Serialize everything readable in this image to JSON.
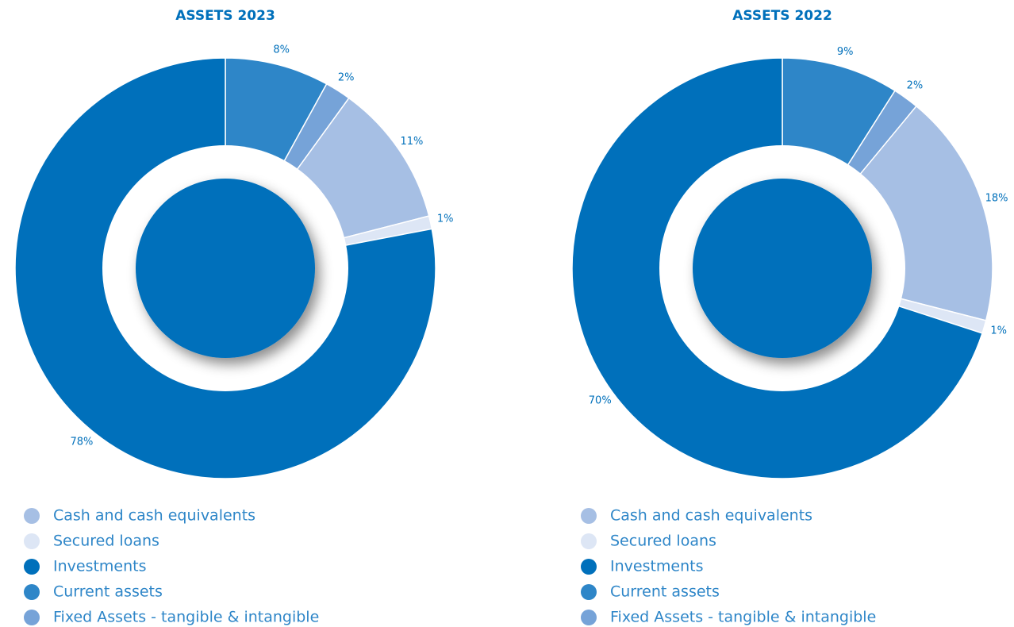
{
  "chart_data": [
    {
      "type": "donut",
      "title": "ASSETS 2023",
      "categories": [
        "Cash and cash equivalents",
        "Secured loans",
        "Investments",
        "Current assets",
        "Fixed Assets - tangible & intangible"
      ],
      "values": [
        11,
        1,
        78,
        8,
        2
      ],
      "value_labels": [
        "11%",
        "1%",
        "78%",
        "8%",
        "2%"
      ],
      "colors": [
        "#a6bfe4",
        "#dde6f5",
        "#0070bb",
        "#2e86c8",
        "#76a3d8"
      ]
    },
    {
      "type": "donut",
      "title": "ASSETS 2022",
      "categories": [
        "Cash and cash equivalents",
        "Secured loans",
        "Investments",
        "Current assets",
        "Fixed Assets - tangible & intangible"
      ],
      "values": [
        18,
        1,
        70,
        9,
        2
      ],
      "value_labels": [
        "18%",
        "1%",
        "70%",
        "9%",
        "2%"
      ],
      "colors": [
        "#a6bfe4",
        "#dde6f5",
        "#0070bb",
        "#2e86c8",
        "#76a3d8"
      ]
    }
  ]
}
